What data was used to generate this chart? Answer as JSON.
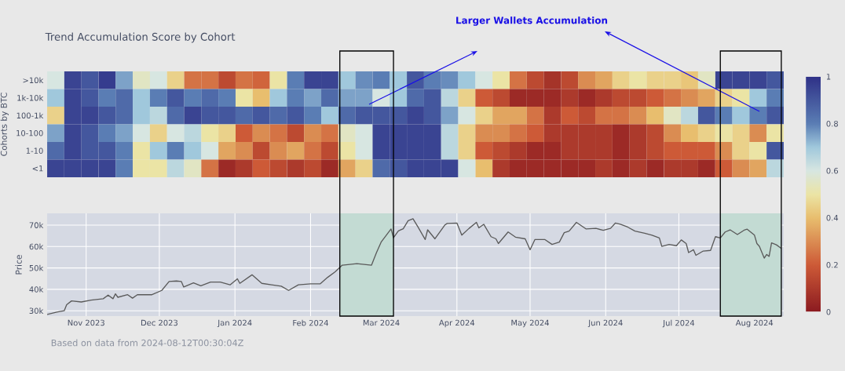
{
  "chart_data": [
    {
      "type": "heatmap",
      "title": "Trend Accumulation Score by Cohort",
      "ylabel": "Cohorts by BTC",
      "annotations": [
        "Larger Wallets Accumulation"
      ],
      "tick_labels": "y",
      "categories": [
        null,
        null,
        null,
        null,
        null,
        null,
        null,
        null,
        null,
        null,
        null,
        null,
        null,
        null,
        null,
        null,
        null,
        null,
        null,
        null,
        null,
        null,
        null,
        null,
        null,
        null,
        null,
        null,
        null,
        null,
        null,
        null,
        null,
        null,
        null,
        null,
        null,
        null,
        null,
        null,
        null,
        null,
        null
      ],
      "y_categories": [
        ">10k",
        "1k-10k",
        "100-1k",
        "10-100",
        "1-10",
        "<1"
      ],
      "cells": [
        [
          0.6,
          0.95,
          0.9,
          0.97,
          0.75,
          0.55,
          0.6,
          0.45,
          0.25,
          0.25,
          0.15,
          0.25,
          0.22,
          0.5,
          0.8,
          0.95,
          0.95,
          0.7,
          0.78,
          0.8,
          0.7,
          0.9,
          0.8,
          0.78,
          0.7,
          0.6,
          0.5,
          0.25,
          0.15,
          0.08,
          0.15,
          0.3,
          0.35,
          0.45,
          0.5,
          0.45,
          0.45,
          0.42,
          0.55,
          0.95,
          0.95,
          0.95,
          0.9
        ],
        [
          0.7,
          0.95,
          0.9,
          0.8,
          0.85,
          0.7,
          0.8,
          0.9,
          0.8,
          0.85,
          0.8,
          0.5,
          0.4,
          0.7,
          0.8,
          0.75,
          0.85,
          0.75,
          0.75,
          0.6,
          0.7,
          0.85,
          0.9,
          0.65,
          0.45,
          0.2,
          0.15,
          0.05,
          0.05,
          0.05,
          0.1,
          0.05,
          0.1,
          0.15,
          0.15,
          0.2,
          0.25,
          0.3,
          0.35,
          0.45,
          0.5,
          0.7,
          0.8
        ],
        [
          0.45,
          0.95,
          0.95,
          0.9,
          0.85,
          0.7,
          0.65,
          0.85,
          0.95,
          0.9,
          0.9,
          0.85,
          0.9,
          0.85,
          0.9,
          0.8,
          0.7,
          0.85,
          0.9,
          0.9,
          0.9,
          0.95,
          0.9,
          0.75,
          0.6,
          0.45,
          0.35,
          0.35,
          0.25,
          0.1,
          0.2,
          0.15,
          0.25,
          0.25,
          0.3,
          0.4,
          0.55,
          0.65,
          0.9,
          0.8,
          0.7,
          0.8,
          0.9
        ],
        [
          0.75,
          0.95,
          0.9,
          0.8,
          0.75,
          0.6,
          0.45,
          0.6,
          0.65,
          0.5,
          0.45,
          0.2,
          0.3,
          0.25,
          0.15,
          0.3,
          0.25,
          0.55,
          0.6,
          0.95,
          0.95,
          0.95,
          0.95,
          0.65,
          0.45,
          0.3,
          0.3,
          0.25,
          0.2,
          0.1,
          0.1,
          0.1,
          0.1,
          0.05,
          0.1,
          0.15,
          0.3,
          0.4,
          0.45,
          0.5,
          0.45,
          0.3,
          0.5
        ],
        [
          0.85,
          0.95,
          0.9,
          0.9,
          0.8,
          0.5,
          0.7,
          0.8,
          0.7,
          0.6,
          0.35,
          0.3,
          0.15,
          0.3,
          0.35,
          0.25,
          0.15,
          0.5,
          0.6,
          0.95,
          0.95,
          0.95,
          0.95,
          0.65,
          0.45,
          0.2,
          0.15,
          0.1,
          0.05,
          0.05,
          0.1,
          0.1,
          0.1,
          0.05,
          0.1,
          0.15,
          0.2,
          0.2,
          0.2,
          0.3,
          0.45,
          0.5,
          0.9
        ],
        [
          0.95,
          0.95,
          0.95,
          0.95,
          0.8,
          0.5,
          0.5,
          0.65,
          0.55,
          0.25,
          0.05,
          0.1,
          0.2,
          0.15,
          0.1,
          0.15,
          0.05,
          0.35,
          0.45,
          0.85,
          0.9,
          0.95,
          0.95,
          0.95,
          0.6,
          0.4,
          0.1,
          0.05,
          0.05,
          0.05,
          0.05,
          0.05,
          0.1,
          0.05,
          0.1,
          0.05,
          0.1,
          0.1,
          0.05,
          0.2,
          0.3,
          0.35,
          0.65
        ]
      ],
      "clim": [
        0,
        1
      ],
      "cticks": [
        0,
        0.2,
        0.4,
        0.6,
        0.8,
        1
      ]
    },
    {
      "type": "line",
      "ylabel": "Price",
      "annotations": [
        "Based on data from 2024-08-12T00:30:04Z"
      ],
      "grid": true,
      "marker": "none",
      "line_style": "solid",
      "xlim": [
        "2023-10-16",
        "2024-08-13"
      ],
      "ylim": [
        27500,
        75500
      ],
      "xticks": [
        {
          "value": "2023-11-01",
          "label": "Nov 2023"
        },
        {
          "value": "2023-12-01",
          "label": "Dec 2023"
        },
        {
          "value": "2024-01-01",
          "label": "Jan 2024"
        },
        {
          "value": "2024-02-01",
          "label": "Feb 2024"
        },
        {
          "value": "2024-03-01",
          "label": "Mar 2024"
        },
        {
          "value": "2024-04-01",
          "label": "Apr 2024"
        },
        {
          "value": "2024-05-01",
          "label": "May 2024"
        },
        {
          "value": "2024-06-01",
          "label": "Jun 2024"
        },
        {
          "value": "2024-07-01",
          "label": "Jul 2024"
        },
        {
          "value": "2024-08-01",
          "label": "Aug 2024"
        }
      ],
      "yticks": [
        {
          "value": 30000,
          "label": "30k"
        },
        {
          "value": 40000,
          "label": "40k"
        },
        {
          "value": 50000,
          "label": "50k"
        },
        {
          "value": 60000,
          "label": "60k"
        },
        {
          "value": 70000,
          "label": "70k"
        }
      ],
      "bands": [
        {
          "axis": "x",
          "from": "2024-02-13",
          "to": "2024-03-06",
          "color": "#c3dbd3"
        },
        {
          "axis": "x",
          "from": "2024-07-18",
          "to": "2024-08-12",
          "color": "#c3dbd3"
        }
      ],
      "series": [
        {
          "color": "#5a5a5a",
          "x": [
            "2023-10-16",
            "2023-10-20",
            "2023-10-23",
            "2023-10-24",
            "2023-10-26",
            "2023-10-30",
            "2023-11-03",
            "2023-11-08",
            "2023-11-10",
            "2023-11-12",
            "2023-11-13",
            "2023-11-14",
            "2023-11-18",
            "2023-11-20",
            "2023-11-22",
            "2023-11-28",
            "2023-12-02",
            "2023-12-05",
            "2023-12-08",
            "2023-12-10",
            "2023-12-11",
            "2023-12-15",
            "2023-12-18",
            "2023-12-22",
            "2023-12-26",
            "2023-12-30",
            "2024-01-02",
            "2024-01-03",
            "2024-01-08",
            "2024-01-12",
            "2024-01-16",
            "2024-01-20",
            "2024-01-23",
            "2024-01-27",
            "2024-02-01",
            "2024-02-05",
            "2024-02-08",
            "2024-02-11",
            "2024-02-14",
            "2024-02-20",
            "2024-02-26",
            "2024-02-28",
            "2024-03-01",
            "2024-03-05",
            "2024-03-06",
            "2024-03-08",
            "2024-03-10",
            "2024-03-12",
            "2024-03-14",
            "2024-03-16",
            "2024-03-19",
            "2024-03-20",
            "2024-03-23",
            "2024-03-27",
            "2024-03-28",
            "2024-04-01",
            "2024-04-03",
            "2024-04-06",
            "2024-04-09",
            "2024-04-10",
            "2024-04-12",
            "2024-04-15",
            "2024-04-17",
            "2024-04-18",
            "2024-04-22",
            "2024-04-25",
            "2024-04-29",
            "2024-05-01",
            "2024-05-03",
            "2024-05-07",
            "2024-05-10",
            "2024-05-13",
            "2024-05-15",
            "2024-05-17",
            "2024-05-20",
            "2024-05-24",
            "2024-05-28",
            "2024-05-31",
            "2024-06-03",
            "2024-06-05",
            "2024-06-07",
            "2024-06-10",
            "2024-06-13",
            "2024-06-17",
            "2024-06-20",
            "2024-06-23",
            "2024-06-24",
            "2024-06-27",
            "2024-06-30",
            "2024-07-02",
            "2024-07-04",
            "2024-07-05",
            "2024-07-07",
            "2024-07-08",
            "2024-07-11",
            "2024-07-14",
            "2024-07-16",
            "2024-07-18",
            "2024-07-20",
            "2024-07-22",
            "2024-07-25",
            "2024-07-28",
            "2024-07-29",
            "2024-08-01",
            "2024-08-02",
            "2024-08-03",
            "2024-08-05",
            "2024-08-06",
            "2024-08-07",
            "2024-08-08",
            "2024-08-10",
            "2024-08-12"
          ],
          "values": [
            28300,
            29400,
            30000,
            32800,
            34600,
            34100,
            35000,
            35600,
            37300,
            35600,
            37900,
            36300,
            37500,
            35900,
            37500,
            37500,
            39500,
            43700,
            43900,
            43700,
            41100,
            43000,
            41700,
            43400,
            43400,
            42100,
            44900,
            42800,
            46800,
            42800,
            42100,
            41500,
            39500,
            42100,
            42600,
            42600,
            45600,
            48100,
            51300,
            52000,
            51300,
            57100,
            62200,
            68200,
            64100,
            67300,
            68300,
            72100,
            73000,
            69200,
            63300,
            67800,
            63600,
            70000,
            70800,
            71000,
            65300,
            68500,
            71300,
            68700,
            70400,
            64600,
            63600,
            61400,
            66800,
            64400,
            63600,
            58500,
            63300,
            63300,
            61000,
            62100,
            66500,
            67200,
            71300,
            68200,
            68500,
            67600,
            68500,
            71000,
            70400,
            69100,
            67200,
            66200,
            65300,
            64000,
            60100,
            61000,
            60400,
            63100,
            61400,
            57200,
            58500,
            55900,
            57900,
            58200,
            64600,
            64000,
            66800,
            67800,
            65600,
            67800,
            68100,
            65300,
            61400,
            60100,
            54600,
            56300,
            55400,
            61700,
            60800,
            59100
          ]
        }
      ]
    }
  ]
}
